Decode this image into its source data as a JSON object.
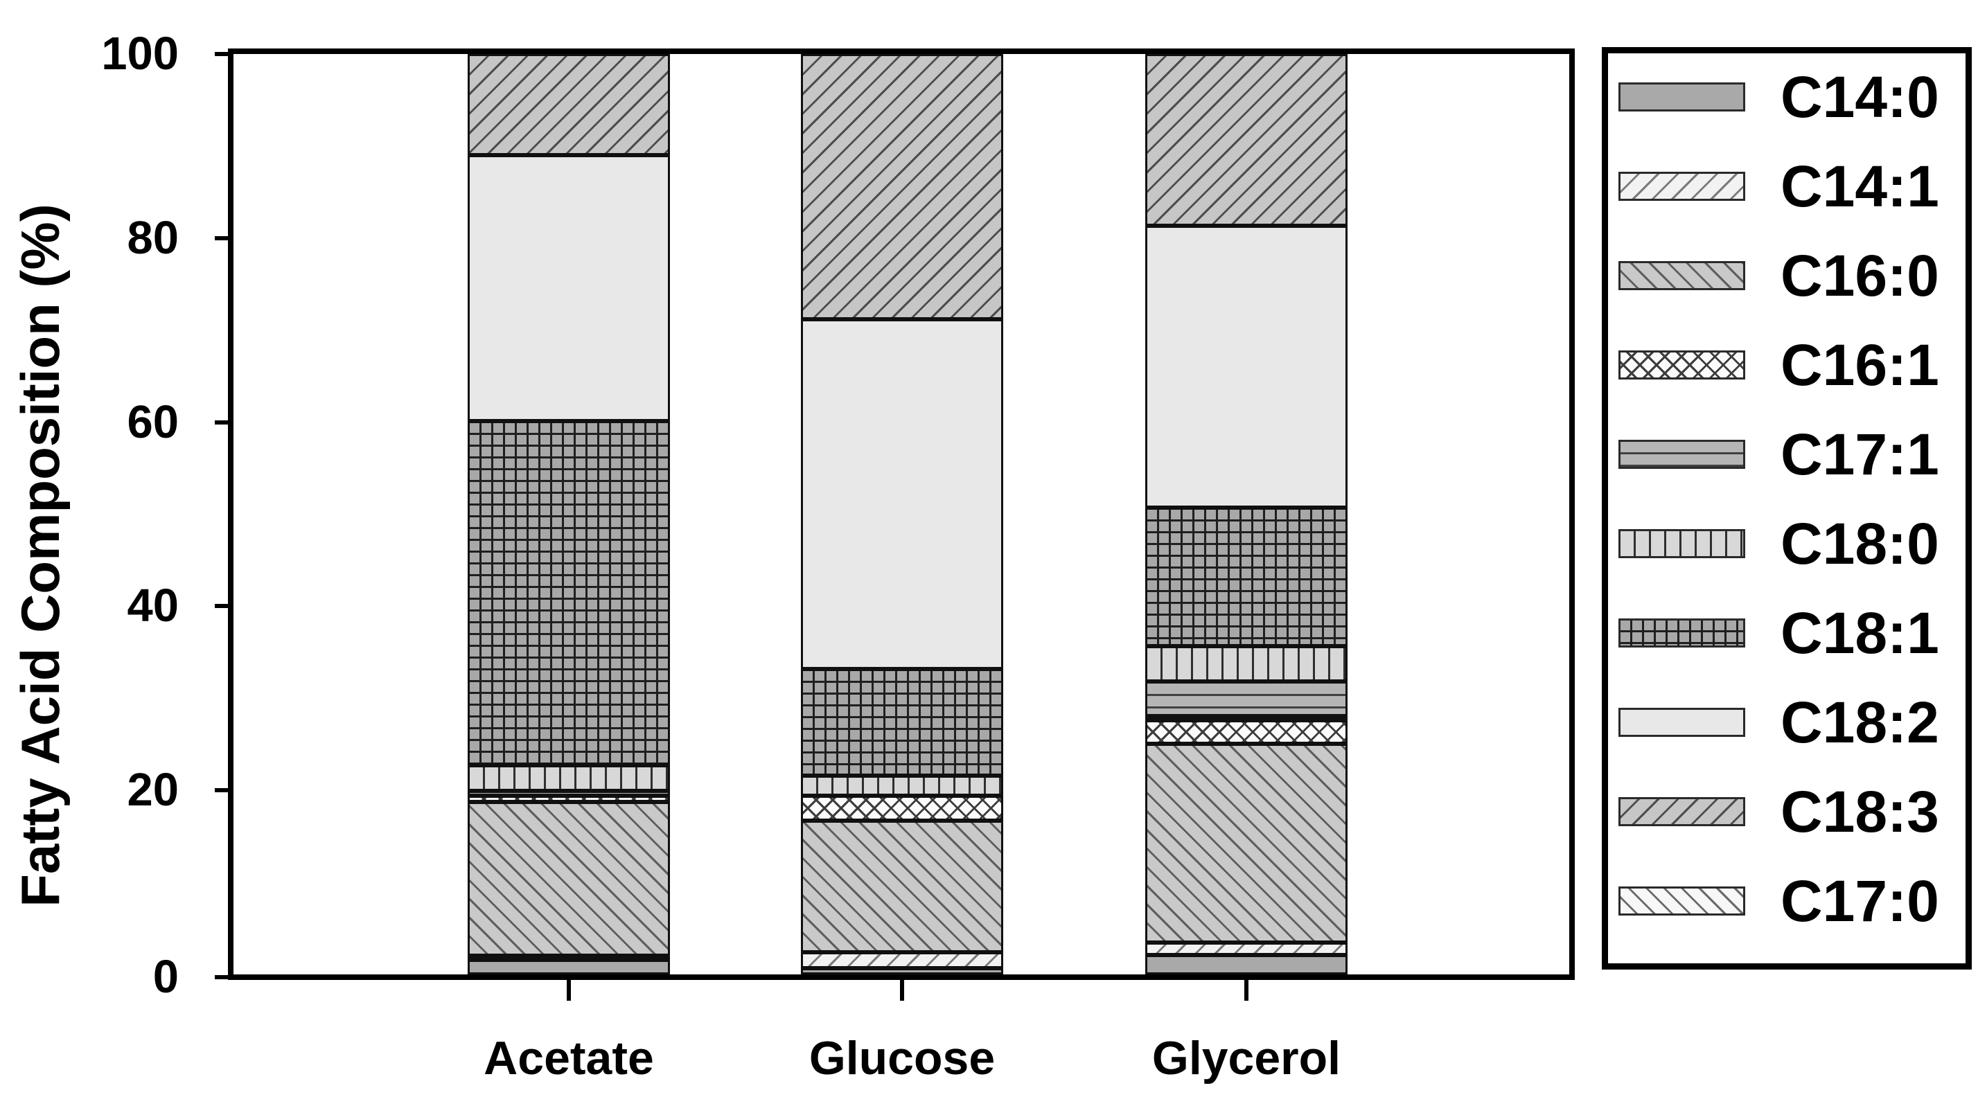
{
  "chart_data": {
    "type": "bar",
    "stacked": true,
    "title": "",
    "xlabel": "",
    "ylabel": "Fatty Acid Composition (%)",
    "ylim": [
      0,
      100
    ],
    "yticks": [
      0,
      20,
      40,
      60,
      80,
      100
    ],
    "grid": false,
    "legend_position": "right-outside",
    "categories": [
      "Acetate",
      "Glucose",
      "Glycerol"
    ],
    "series": [
      {
        "name": "C14:0",
        "pattern": "solid-mid-gray",
        "pattern_key": "c14_0",
        "values": [
          1.6,
          0.7,
          2.1
        ]
      },
      {
        "name": "C14:1",
        "pattern": "white-forward-hatch",
        "pattern_key": "c14_1",
        "values": [
          0.4,
          1.7,
          1.4
        ]
      },
      {
        "name": "C16:0",
        "pattern": "gray-back-hatch",
        "pattern_key": "c16_0",
        "values": [
          16.7,
          14.3,
          21.6
        ]
      },
      {
        "name": "C16:1",
        "pattern": "white-crosshatch",
        "pattern_key": "c16_1",
        "values": [
          0.7,
          2.7,
          2.5
        ]
      },
      {
        "name": "C17:0",
        "pattern": "white-back-hatch",
        "pattern_key": "c17_0",
        "values": [
          0.0,
          0.0,
          0.4
        ]
      },
      {
        "name": "C17:1",
        "pattern": "gray-horizontal-lines",
        "pattern_key": "c17_1",
        "values": [
          0.5,
          0.0,
          3.8
        ]
      },
      {
        "name": "C18:0",
        "pattern": "light-vertical-lines",
        "pattern_key": "c18_0",
        "values": [
          2.8,
          2.2,
          3.8
        ]
      },
      {
        "name": "C18:1",
        "pattern": "gray-grid",
        "pattern_key": "c18_1",
        "values": [
          37.4,
          11.6,
          15.1
        ]
      },
      {
        "name": "C18:2",
        "pattern": "solid-light-gray",
        "pattern_key": "c18_2",
        "values": [
          28.9,
          38.0,
          30.6
        ]
      },
      {
        "name": "C18:3",
        "pattern": "gray-forward-hatch",
        "pattern_key": "c18_3",
        "values": [
          11.0,
          28.8,
          18.7
        ]
      }
    ],
    "legend_entries": [
      "C14:0",
      "C14:1",
      "C16:0",
      "C16:1",
      "C17:1",
      "C18:0",
      "C18:1",
      "C18:2",
      "C18:3",
      "C17:0"
    ]
  },
  "layout_colors": {
    "axis": "#000000",
    "background": "#ffffff"
  }
}
